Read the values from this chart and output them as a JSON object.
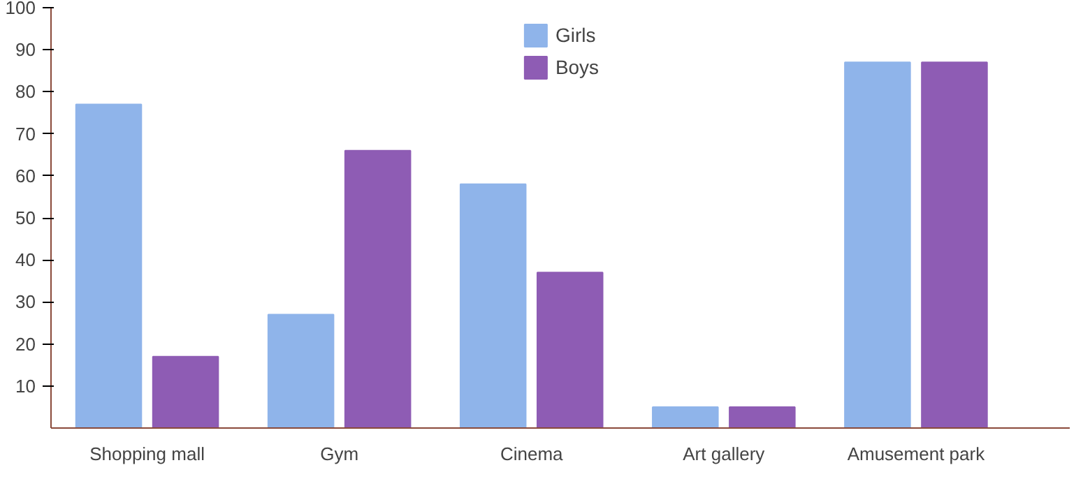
{
  "chart_data": {
    "type": "bar",
    "categories": [
      "Shopping mall",
      "Gym",
      "Cinema",
      "Art gallery",
      "Amusement park"
    ],
    "series": [
      {
        "name": "Girls",
        "color": "#8fb4ea",
        "values": [
          77,
          27,
          58,
          5,
          87
        ]
      },
      {
        "name": "Boys",
        "color": "#8e5cb4",
        "values": [
          17,
          66,
          37,
          5,
          87
        ]
      }
    ],
    "ylim": [
      0,
      100
    ],
    "yticks": [
      10,
      20,
      30,
      40,
      50,
      60,
      70,
      80,
      90,
      100
    ],
    "grid": false,
    "legend": "top"
  }
}
